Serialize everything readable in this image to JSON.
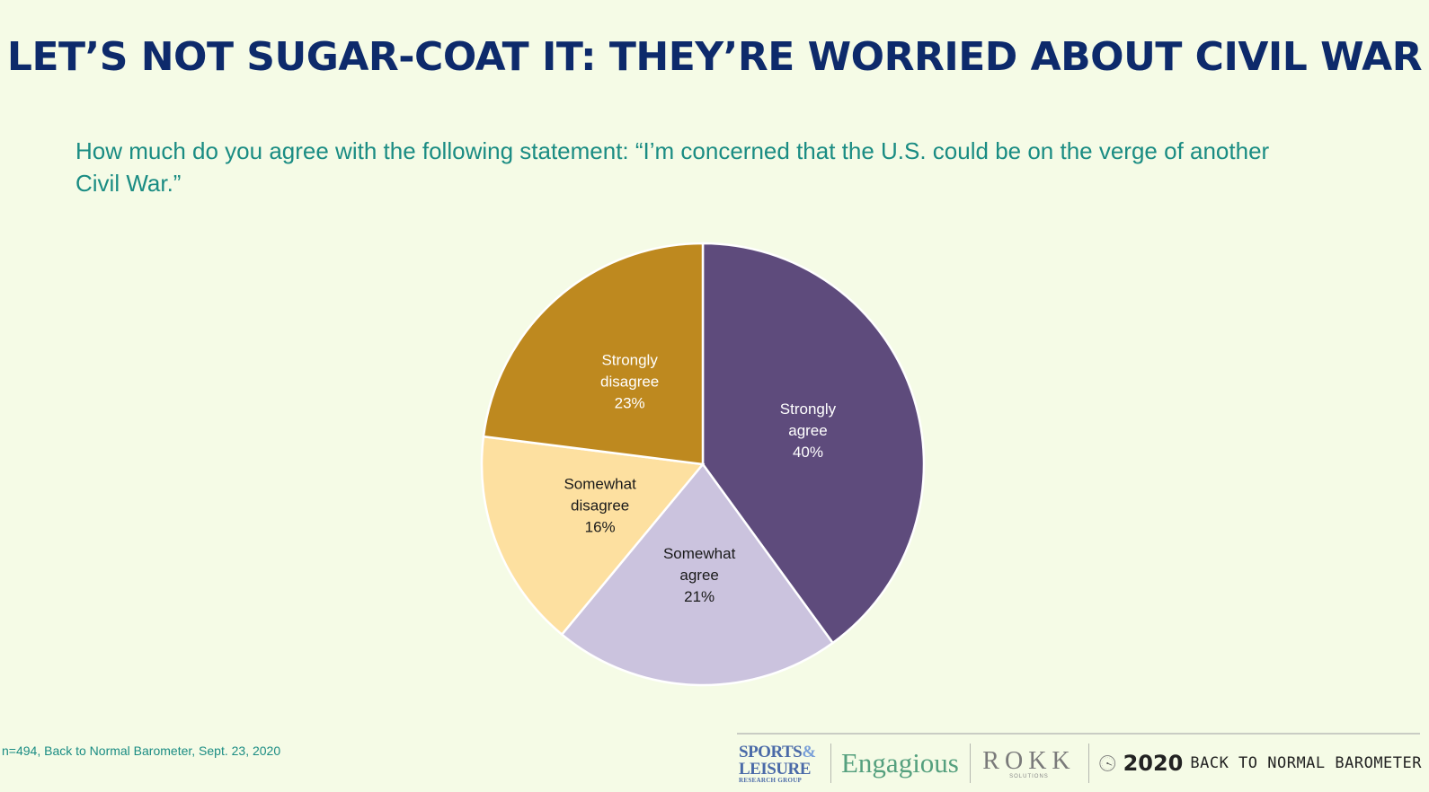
{
  "title": "LET’S NOT SUGAR-COAT IT: THEY’RE WORRIED ABOUT CIVIL WAR",
  "question": "How much do you agree with the following statement: “I’m concerned that the U.S. could be on the verge of another Civil War.”",
  "source": "n=494, Back to Normal Barometer, Sept. 23, 2020",
  "chart_data": {
    "type": "pie",
    "title": "",
    "unit": "%",
    "slices": [
      {
        "name": "Strongly agree",
        "label_lines": [
          "Strongly",
          "agree"
        ],
        "value": 40,
        "color": "#5e4b7c",
        "text_color": "#ffffff"
      },
      {
        "name": "Somewhat agree",
        "label_lines": [
          "Somewhat",
          "agree"
        ],
        "value": 21,
        "color": "#cbc3de",
        "text_color": "#1a1a1a"
      },
      {
        "name": "Somewhat disagree",
        "label_lines": [
          "Somewhat",
          "disagree"
        ],
        "value": 16,
        "color": "#fde0a0",
        "text_color": "#1a1a1a"
      },
      {
        "name": "Strongly disagree",
        "label_lines": [
          "Strongly",
          "disagree"
        ],
        "value": 23,
        "color": "#be891f",
        "text_color": "#ffffff"
      }
    ]
  },
  "footer": {
    "sports_line1": "SPORTS",
    "sports_amp": "&",
    "sports_line2": "LEISURE",
    "sports_line3": "RESEARCH GROUP",
    "engagious": "Engagious",
    "rokk": "ROKK",
    "rokk_sub": "SOLUTIONS",
    "year": "2020",
    "barometer": "BACK TO NORMAL BAROMETER"
  }
}
